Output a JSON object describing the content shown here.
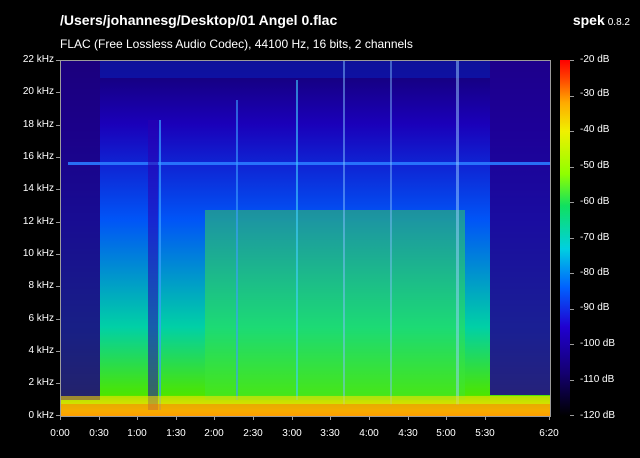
{
  "header": {
    "file_path": "/Users/johannesg/Desktop/01 Angel 0.flac",
    "info": "FLAC (Free Lossless Audio Codec), 44100 Hz, 16 bits, 2 channels"
  },
  "app": {
    "name": "spek",
    "version": "0.8.2"
  },
  "y_axis": {
    "ticks": [
      "22 kHz",
      "20 kHz",
      "18 kHz",
      "16 kHz",
      "14 kHz",
      "12 kHz",
      "10 kHz",
      "8 kHz",
      "6 kHz",
      "4 kHz",
      "2 kHz",
      "0 kHz"
    ]
  },
  "x_axis": {
    "ticks": [
      "0:00",
      "0:30",
      "1:00",
      "1:30",
      "2:00",
      "2:30",
      "3:00",
      "3:30",
      "4:00",
      "4:30",
      "5:00",
      "5:30",
      "6:20"
    ]
  },
  "colorbar": {
    "ticks": [
      "-20 dB",
      "-30 dB",
      "-40 dB",
      "-50 dB",
      "-60 dB",
      "-70 dB",
      "-80 dB",
      "-90 dB",
      "-100 dB",
      "-110 dB",
      "-120 dB"
    ]
  },
  "palette": {
    "loud": "#ffae00",
    "medium": "#4ce600",
    "quiet": "#0055f7",
    "silent": "#14006e"
  }
}
